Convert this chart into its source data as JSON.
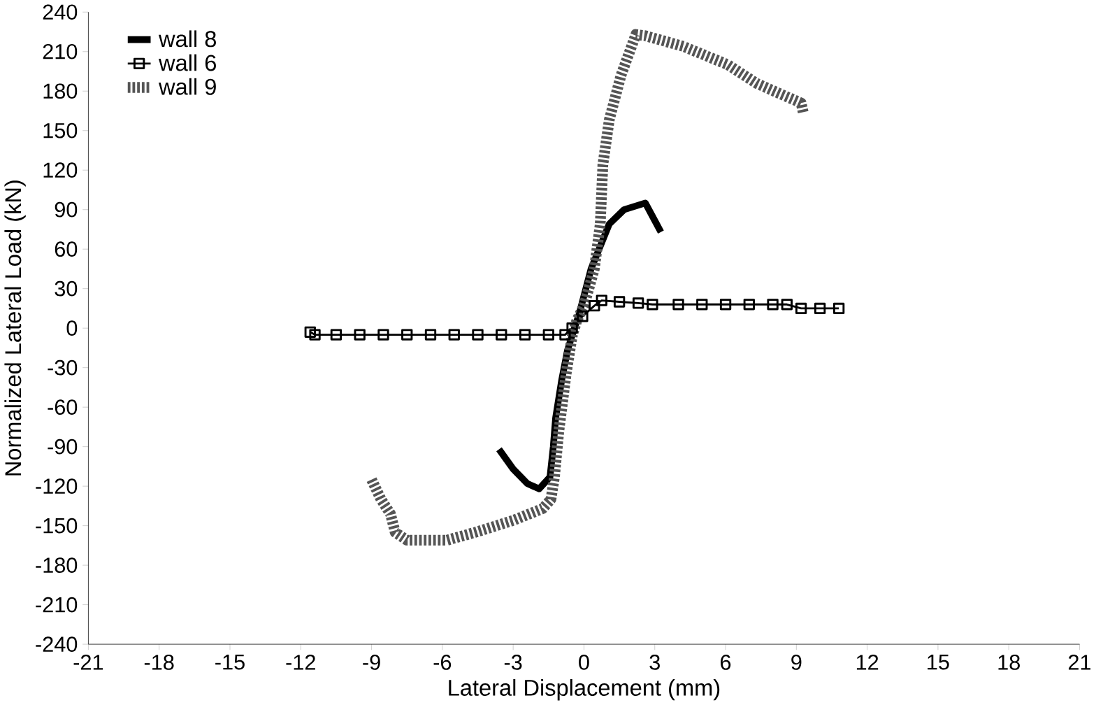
{
  "chart_data": {
    "type": "line",
    "xlabel": "Lateral Displacement (mm)",
    "ylabel": "Normalized Lateral Load (kN)",
    "xlim": [
      -21,
      21
    ],
    "ylim": [
      -240,
      240
    ],
    "xticks": [
      -21,
      -18,
      -15,
      -12,
      -9,
      -6,
      -3,
      0,
      3,
      6,
      9,
      12,
      15,
      18,
      21
    ],
    "yticks": [
      -240,
      -210,
      -180,
      -150,
      -120,
      -90,
      -60,
      -30,
      0,
      30,
      60,
      90,
      120,
      150,
      180,
      210,
      240
    ],
    "grid": false,
    "legend": "top left",
    "series": [
      {
        "name": "wall 8",
        "color": "#000000",
        "line_style": "solid",
        "marker": "none",
        "x": [
          -3.6,
          -3.0,
          -2.4,
          -1.9,
          -1.44,
          -1.3,
          -1.2,
          -0.94,
          -0.7,
          -0.44,
          -0.2,
          0.3,
          1.07,
          1.7,
          2.6,
          2.9,
          3.26
        ],
        "values": [
          -92,
          -107,
          -118,
          -122,
          -113,
          -90,
          -68,
          -39,
          -17,
          -2,
          11,
          45,
          79,
          90,
          95,
          85,
          73
        ]
      },
      {
        "name": "wall 6",
        "color": "#000000",
        "line_style": "solid",
        "marker": "square",
        "x": [
          -11.6,
          -11.4,
          -10.5,
          -9.5,
          -8.5,
          -7.5,
          -6.5,
          -5.5,
          -4.5,
          -3.5,
          -2.5,
          -1.5,
          -0.8,
          -0.5,
          -0.06,
          0.44,
          0.75,
          1.5,
          2.3,
          2.9,
          4,
          5,
          6,
          7,
          8,
          8.6,
          9.2,
          10,
          10.8
        ],
        "values": [
          -3,
          -5,
          -5,
          -5,
          -5,
          -5,
          -5,
          -5,
          -5,
          -5,
          -5,
          -5,
          -5,
          0,
          9,
          17,
          21,
          20,
          19,
          18,
          18,
          18,
          18,
          18,
          18,
          18,
          15,
          15,
          15
        ]
      },
      {
        "name": "wall 9",
        "color": "#555555",
        "line_style": "dotted",
        "marker": "none",
        "x": [
          -9.0,
          -8.6,
          -8.2,
          -8.0,
          -7.5,
          -5.8,
          -4.6,
          -3.0,
          -1.75,
          -1.4,
          -1.25,
          -1.07,
          -0.75,
          -0.5,
          -0.3,
          0,
          0.44,
          0.69,
          0.8,
          1.07,
          1.57,
          2.2,
          2.6,
          4.2,
          6.1,
          7.3,
          8.3,
          9.2,
          9.3
        ],
        "values": [
          -115,
          -130,
          -141,
          -155,
          -161,
          -161,
          -155,
          -146,
          -137,
          -130,
          -113,
          -79,
          -34,
          -6,
          6,
          17,
          45,
          79,
          124,
          158,
          192,
          223,
          222,
          214,
          200,
          186,
          178,
          171,
          163
        ]
      }
    ]
  }
}
